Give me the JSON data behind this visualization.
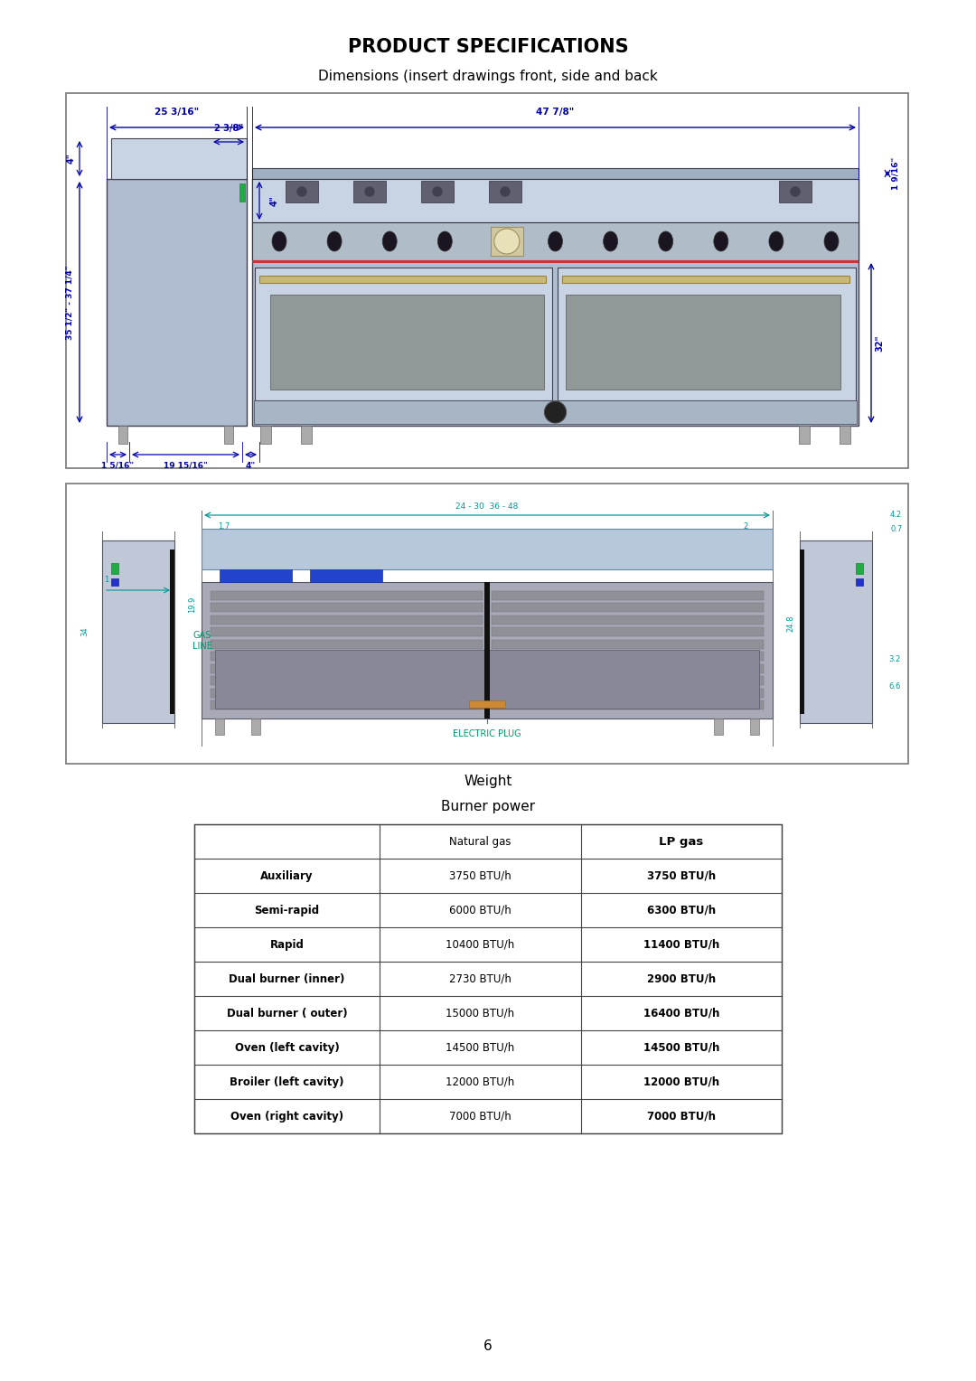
{
  "title": "PRODUCT SPECIFICATIONS",
  "subtitle": "Dimensions (insert drawings front, side and back",
  "weight_label": "Weight",
  "burner_power_label": "Burner power",
  "table_headers": [
    "",
    "Natural gas",
    "LP gas"
  ],
  "table_rows": [
    [
      "Auxiliary",
      "3750 BTU/h",
      "3750 BTU/h"
    ],
    [
      "Semi-rapid",
      "6000 BTU/h",
      "6300 BTU/h"
    ],
    [
      "Rapid",
      "10400 BTU/h",
      "11400 BTU/h"
    ],
    [
      "Dual burner (inner)",
      "2730 BTU/h",
      "2900 BTU/h"
    ],
    [
      "Dual burner ( outer)",
      "15000 BTU/h",
      "16400 BTU/h"
    ],
    [
      "Oven (left cavity)",
      "14500 BTU/h",
      "14500 BTU/h"
    ],
    [
      "Broiler (left cavity)",
      "12000 BTU/h",
      "12000 BTU/h"
    ],
    [
      "Oven (right cavity)",
      "7000 BTU/h",
      "7000 BTU/h"
    ]
  ],
  "page_number": "6",
  "bg_color": "#ffffff",
  "stove_blue": "#b0bdd0",
  "stove_blue_light": "#c8d4e4",
  "stove_blue_dark": "#8898b0",
  "ann_color": "#0000aa",
  "teal_color": "#009999",
  "dim_line_color": "#0000cc"
}
